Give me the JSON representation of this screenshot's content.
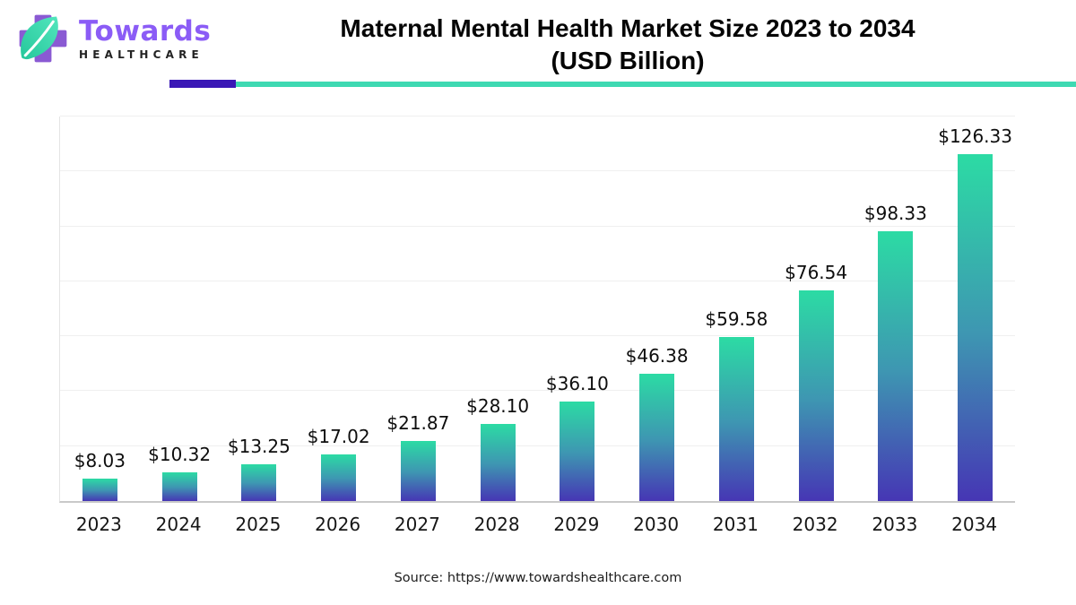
{
  "brand": {
    "name": "Towards",
    "subname": "HEALTHCARE",
    "logo_icon": "cross-leaf-icon",
    "accent_purple": "#8b5cf6",
    "cross_purple": "#8a5ad3",
    "leaf_teal_light": "#52e6bd",
    "leaf_teal_dark": "#25c79b"
  },
  "header": {
    "title_line1": "Maternal Mental Health Market Size 2023 to 2034",
    "title_line2": "(USD Billion)",
    "rule_purple_color": "#3a18b6",
    "rule_teal_color": "#3ed9b2"
  },
  "chart_data": {
    "type": "bar",
    "title": "Maternal Mental Health Market Size 2023 to 2034 (USD Billion)",
    "xlabel": "",
    "ylabel": "",
    "categories": [
      "2023",
      "2024",
      "2025",
      "2026",
      "2027",
      "2028",
      "2029",
      "2030",
      "2031",
      "2032",
      "2033",
      "2034"
    ],
    "values": [
      8.03,
      10.32,
      13.25,
      17.02,
      21.87,
      28.1,
      36.1,
      46.38,
      59.58,
      76.54,
      98.33,
      126.33
    ],
    "value_labels": [
      "$8.03",
      "$10.32",
      "$13.25",
      "$17.02",
      "$21.87",
      "$28.10",
      "$36.10",
      "$46.38",
      "$59.58",
      "$76.54",
      "$98.33",
      "$126.33"
    ],
    "ylim": [
      0,
      140
    ],
    "gridline_step": 20,
    "grid": true,
    "legend": "none",
    "bar_gradient_top": "#2cdba4",
    "bar_gradient_mid": "#3e96b2",
    "bar_gradient_bottom": "#4636b4",
    "gridline_color": "#efefef",
    "axis_color": "#c9c9c9"
  },
  "footer": {
    "source": "Source: https://www.towardshealthcare.com"
  }
}
